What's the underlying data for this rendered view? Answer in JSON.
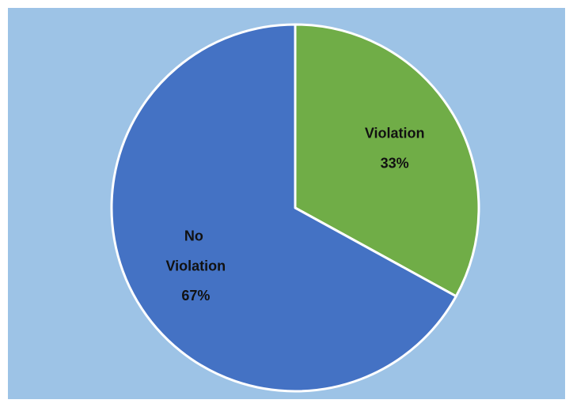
{
  "chart_data": {
    "type": "pie",
    "categories": [
      "Violation",
      "No Violation"
    ],
    "values": [
      33,
      67
    ],
    "value_labels": [
      "33%",
      "67%"
    ],
    "colors": [
      "#70ad47",
      "#4472c4"
    ]
  }
}
